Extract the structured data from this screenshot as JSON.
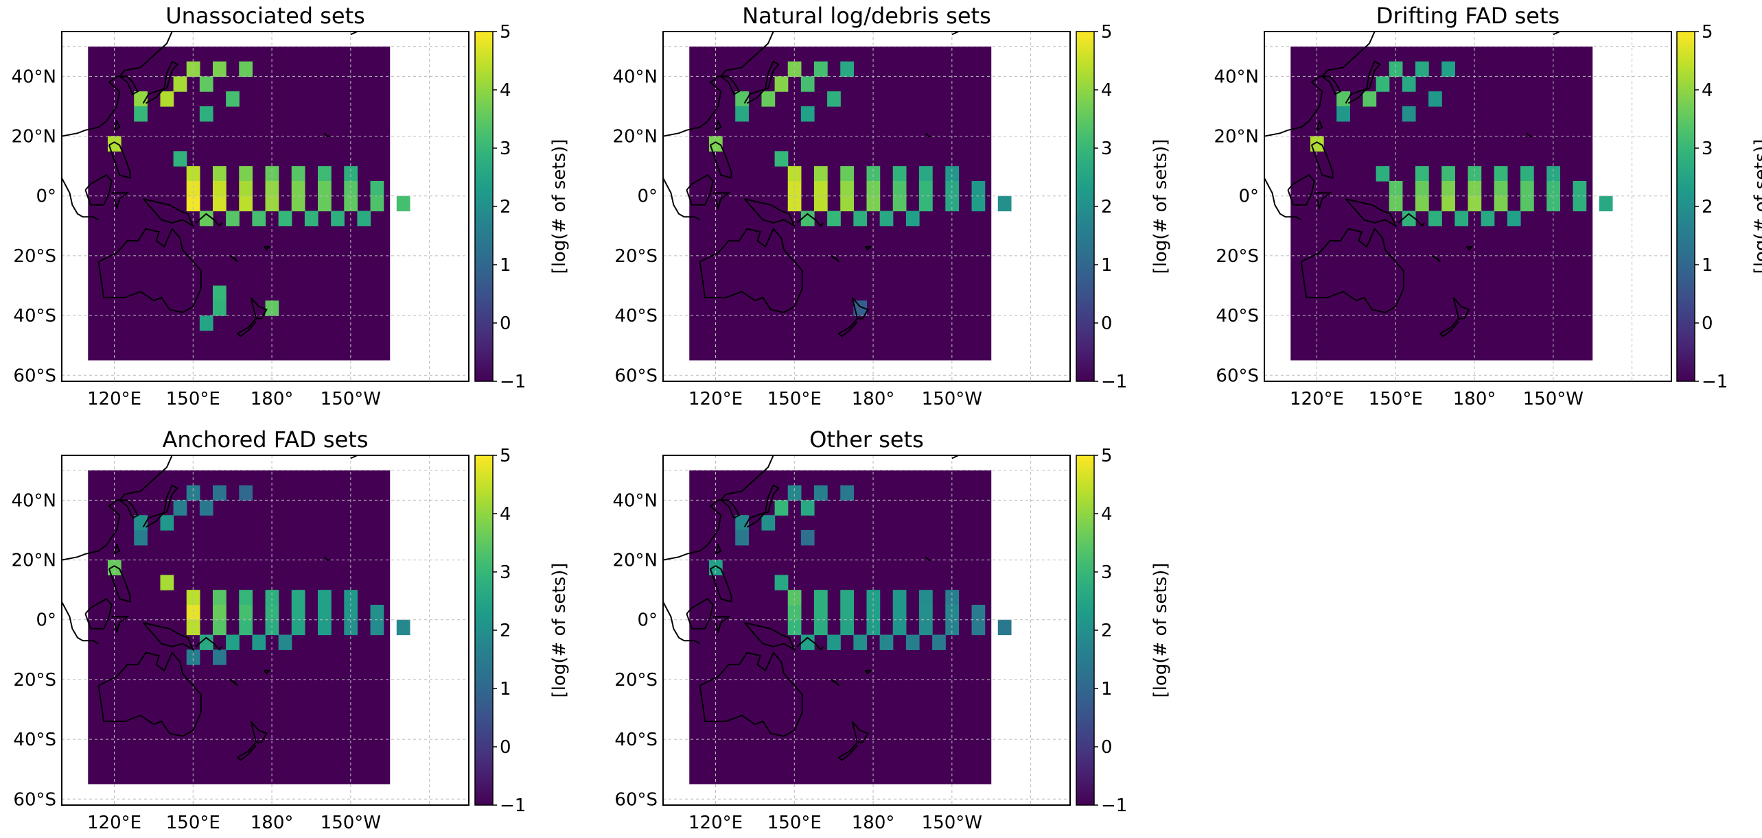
{
  "figure": {
    "tick_labels": {
      "x": [
        "120°E",
        "150°E",
        "180°",
        "150°W"
      ],
      "y": [
        "40°N",
        "20°N",
        "0°",
        "20°S",
        "40°S",
        "60°S"
      ]
    },
    "colorbar": {
      "label": "[log(# of sets)]",
      "ticks": [
        "5",
        "4",
        "3",
        "2",
        "1",
        "0",
        "−1"
      ],
      "range": [
        -1,
        5
      ],
      "colormap": "viridis"
    },
    "colors": {
      "background": "#440154",
      "coast": "#000000",
      "grid": "#bbbbbb"
    }
  },
  "chart_data": [
    {
      "type": "heatmap",
      "title": "Unassociated sets",
      "xlabel": "",
      "ylabel": "",
      "xlim": [
        110,
        225
      ],
      "ylim": [
        -55,
        50
      ],
      "cell_size_deg": 5,
      "cells": [
        [
          120,
          17.5,
          4.3
        ],
        [
          150,
          42.5,
          4.0
        ],
        [
          160,
          42.5,
          3.8
        ],
        [
          170,
          42.5,
          3.6
        ],
        [
          145,
          37.5,
          4.2
        ],
        [
          155,
          37.5,
          3.5
        ],
        [
          140,
          32.5,
          4.3
        ],
        [
          130,
          32.5,
          4.0
        ],
        [
          130,
          27.5,
          3.0
        ],
        [
          155,
          27.5,
          2.8
        ],
        [
          165,
          32.5,
          3.2
        ],
        [
          145,
          12.5,
          2.9
        ],
        [
          150,
          7.5,
          4.4
        ],
        [
          160,
          7.5,
          4.0
        ],
        [
          170,
          7.5,
          3.8
        ],
        [
          180,
          7.5,
          3.6
        ],
        [
          190,
          7.5,
          3.4
        ],
        [
          200,
          7.5,
          3.1
        ],
        [
          210,
          7.5,
          2.8
        ],
        [
          150,
          2.5,
          4.8
        ],
        [
          160,
          2.5,
          4.5
        ],
        [
          170,
          2.5,
          4.2
        ],
        [
          180,
          2.5,
          4.0
        ],
        [
          190,
          2.5,
          3.8
        ],
        [
          200,
          2.5,
          3.6
        ],
        [
          210,
          2.5,
          3.4
        ],
        [
          220,
          2.5,
          3.1
        ],
        [
          150,
          -2.5,
          4.9
        ],
        [
          160,
          -2.5,
          4.6
        ],
        [
          170,
          -2.5,
          4.4
        ],
        [
          180,
          -2.5,
          4.1
        ],
        [
          190,
          -2.5,
          3.8
        ],
        [
          200,
          -2.5,
          3.6
        ],
        [
          210,
          -2.5,
          3.5
        ],
        [
          220,
          -2.5,
          3.3
        ],
        [
          230,
          -2.5,
          3.2
        ],
        [
          155,
          -7.5,
          3.6
        ],
        [
          165,
          -7.5,
          3.4
        ],
        [
          175,
          -7.5,
          3.2
        ],
        [
          185,
          -7.5,
          3.0
        ],
        [
          195,
          -7.5,
          2.9
        ],
        [
          205,
          -7.5,
          2.8
        ],
        [
          215,
          -7.5,
          2.7
        ],
        [
          160,
          -32.5,
          3.0
        ],
        [
          160,
          -37.5,
          2.9
        ],
        [
          155,
          -42.5,
          2.5
        ],
        [
          180,
          -37.5,
          3.5
        ]
      ]
    },
    {
      "type": "heatmap",
      "title": "Natural log/debris sets",
      "xlabel": "",
      "ylabel": "",
      "xlim": [
        110,
        225
      ],
      "ylim": [
        -55,
        50
      ],
      "cell_size_deg": 5,
      "cells": [
        [
          120,
          17.5,
          3.8
        ],
        [
          150,
          42.5,
          3.8
        ],
        [
          160,
          42.5,
          3.2
        ],
        [
          170,
          42.5,
          2.6
        ],
        [
          145,
          37.5,
          3.9
        ],
        [
          155,
          37.5,
          3.2
        ],
        [
          140,
          32.5,
          3.6
        ],
        [
          130,
          32.5,
          3.4
        ],
        [
          130,
          27.5,
          2.6
        ],
        [
          155,
          27.5,
          2.4
        ],
        [
          165,
          32.5,
          2.8
        ],
        [
          145,
          12.5,
          3.0
        ],
        [
          150,
          7.5,
          4.4
        ],
        [
          160,
          7.5,
          4.0
        ],
        [
          170,
          7.5,
          3.6
        ],
        [
          180,
          7.5,
          3.2
        ],
        [
          190,
          7.5,
          2.9
        ],
        [
          200,
          7.5,
          2.6
        ],
        [
          210,
          7.5,
          2.2
        ],
        [
          150,
          2.5,
          4.6
        ],
        [
          160,
          2.5,
          4.4
        ],
        [
          170,
          2.5,
          4.0
        ],
        [
          180,
          2.5,
          3.7
        ],
        [
          190,
          2.5,
          3.3
        ],
        [
          200,
          2.5,
          3.0
        ],
        [
          210,
          2.5,
          2.6
        ],
        [
          220,
          2.5,
          2.2
        ],
        [
          150,
          -2.5,
          4.6
        ],
        [
          160,
          -2.5,
          4.4
        ],
        [
          170,
          -2.5,
          4.1
        ],
        [
          180,
          -2.5,
          3.8
        ],
        [
          190,
          -2.5,
          3.4
        ],
        [
          200,
          -2.5,
          3.0
        ],
        [
          210,
          -2.5,
          2.6
        ],
        [
          220,
          -2.5,
          2.3
        ],
        [
          230,
          -2.5,
          2.0
        ],
        [
          155,
          -7.5,
          3.2
        ],
        [
          165,
          -7.5,
          3.0
        ],
        [
          175,
          -7.5,
          2.8
        ],
        [
          185,
          -7.5,
          2.6
        ],
        [
          195,
          -7.5,
          2.4
        ],
        [
          175,
          -37.5,
          0.8
        ]
      ]
    },
    {
      "type": "heatmap",
      "title": "Drifting FAD sets",
      "xlabel": "",
      "ylabel": "",
      "xlim": [
        110,
        225
      ],
      "ylim": [
        -55,
        50
      ],
      "cell_size_deg": 5,
      "cells": [
        [
          120,
          17.5,
          4.3
        ],
        [
          150,
          42.5,
          3.0
        ],
        [
          160,
          42.5,
          2.6
        ],
        [
          170,
          42.5,
          2.4
        ],
        [
          145,
          37.5,
          3.0
        ],
        [
          155,
          37.5,
          2.6
        ],
        [
          140,
          32.5,
          3.4
        ],
        [
          130,
          32.5,
          3.4
        ],
        [
          130,
          27.5,
          2.2
        ],
        [
          155,
          27.5,
          2.0
        ],
        [
          165,
          32.5,
          2.2
        ],
        [
          145,
          7.5,
          2.8
        ],
        [
          160,
          7.5,
          3.0
        ],
        [
          170,
          7.5,
          3.1
        ],
        [
          180,
          7.5,
          3.1
        ],
        [
          190,
          7.5,
          3.0
        ],
        [
          200,
          7.5,
          2.8
        ],
        [
          210,
          7.5,
          2.6
        ],
        [
          150,
          2.5,
          3.4
        ],
        [
          160,
          2.5,
          3.6
        ],
        [
          170,
          2.5,
          3.8
        ],
        [
          180,
          2.5,
          3.8
        ],
        [
          190,
          2.5,
          3.6
        ],
        [
          200,
          2.5,
          3.4
        ],
        [
          210,
          2.5,
          3.1
        ],
        [
          220,
          2.5,
          2.8
        ],
        [
          150,
          -2.5,
          3.6
        ],
        [
          160,
          -2.5,
          3.8
        ],
        [
          170,
          -2.5,
          4.0
        ],
        [
          180,
          -2.5,
          4.0
        ],
        [
          190,
          -2.5,
          3.8
        ],
        [
          200,
          -2.5,
          3.4
        ],
        [
          210,
          -2.5,
          3.1
        ],
        [
          220,
          -2.5,
          2.8
        ],
        [
          230,
          -2.5,
          2.6
        ],
        [
          155,
          -7.5,
          2.9
        ],
        [
          165,
          -7.5,
          2.8
        ],
        [
          175,
          -7.5,
          2.7
        ],
        [
          185,
          -7.5,
          2.6
        ],
        [
          195,
          -7.5,
          2.4
        ]
      ]
    },
    {
      "type": "heatmap",
      "title": "Anchored FAD sets",
      "xlabel": "",
      "ylabel": "",
      "xlim": [
        110,
        225
      ],
      "ylim": [
        -55,
        50
      ],
      "cell_size_deg": 5,
      "cells": [
        [
          120,
          17.5,
          3.6
        ],
        [
          150,
          42.5,
          1.6
        ],
        [
          160,
          42.5,
          1.3
        ],
        [
          170,
          42.5,
          1.0
        ],
        [
          145,
          37.5,
          1.6
        ],
        [
          155,
          37.5,
          1.4
        ],
        [
          140,
          32.5,
          2.2
        ],
        [
          130,
          32.5,
          2.0
        ],
        [
          130,
          27.5,
          1.6
        ],
        [
          140,
          12.5,
          4.2
        ],
        [
          150,
          7.5,
          4.4
        ],
        [
          160,
          7.5,
          3.4
        ],
        [
          170,
          7.5,
          3.0
        ],
        [
          180,
          7.5,
          2.8
        ],
        [
          190,
          7.5,
          2.6
        ],
        [
          200,
          7.5,
          2.4
        ],
        [
          210,
          7.5,
          2.2
        ],
        [
          150,
          2.5,
          4.8
        ],
        [
          160,
          2.5,
          3.6
        ],
        [
          170,
          2.5,
          3.2
        ],
        [
          180,
          2.5,
          2.9
        ],
        [
          190,
          2.5,
          2.6
        ],
        [
          200,
          2.5,
          2.4
        ],
        [
          210,
          2.5,
          2.2
        ],
        [
          220,
          2.5,
          2.0
        ],
        [
          150,
          -2.5,
          4.4
        ],
        [
          160,
          -2.5,
          3.4
        ],
        [
          170,
          -2.5,
          3.0
        ],
        [
          180,
          -2.5,
          2.7
        ],
        [
          190,
          -2.5,
          2.5
        ],
        [
          200,
          -2.5,
          2.3
        ],
        [
          210,
          -2.5,
          2.0
        ],
        [
          220,
          -2.5,
          1.9
        ],
        [
          230,
          -2.5,
          1.8
        ],
        [
          155,
          -7.5,
          2.6
        ],
        [
          165,
          -7.5,
          2.4
        ],
        [
          175,
          -7.5,
          2.2
        ],
        [
          185,
          -7.5,
          1.8
        ],
        [
          150,
          -12.5,
          1.6
        ],
        [
          160,
          -12.5,
          1.4
        ]
      ]
    },
    {
      "type": "heatmap",
      "title": "Other sets",
      "xlabel": "",
      "ylabel": "",
      "xlim": [
        110,
        225
      ],
      "ylim": [
        -55,
        50
      ],
      "cell_size_deg": 5,
      "cells": [
        [
          120,
          17.5,
          2.4
        ],
        [
          150,
          42.5,
          1.8
        ],
        [
          160,
          42.5,
          1.6
        ],
        [
          170,
          42.5,
          1.4
        ],
        [
          145,
          37.5,
          3.0
        ],
        [
          155,
          37.5,
          2.6
        ],
        [
          140,
          32.5,
          2.0
        ],
        [
          130,
          32.5,
          1.8
        ],
        [
          130,
          27.5,
          1.4
        ],
        [
          155,
          27.5,
          1.2
        ],
        [
          145,
          12.5,
          2.6
        ],
        [
          150,
          7.5,
          3.4
        ],
        [
          160,
          7.5,
          2.8
        ],
        [
          170,
          7.5,
          2.6
        ],
        [
          180,
          7.5,
          2.4
        ],
        [
          190,
          7.5,
          2.2
        ],
        [
          200,
          7.5,
          1.9
        ],
        [
          210,
          7.5,
          1.6
        ],
        [
          150,
          2.5,
          3.2
        ],
        [
          160,
          2.5,
          2.8
        ],
        [
          170,
          2.5,
          2.6
        ],
        [
          180,
          2.5,
          2.4
        ],
        [
          190,
          2.5,
          2.2
        ],
        [
          200,
          2.5,
          2.0
        ],
        [
          210,
          2.5,
          1.8
        ],
        [
          220,
          2.5,
          1.5
        ],
        [
          150,
          -2.5,
          3.0
        ],
        [
          160,
          -2.5,
          2.7
        ],
        [
          170,
          -2.5,
          2.5
        ],
        [
          180,
          -2.5,
          2.3
        ],
        [
          190,
          -2.5,
          2.1
        ],
        [
          200,
          -2.5,
          1.9
        ],
        [
          210,
          -2.5,
          1.7
        ],
        [
          220,
          -2.5,
          1.5
        ],
        [
          230,
          -2.5,
          1.4
        ],
        [
          155,
          -7.5,
          2.4
        ],
        [
          165,
          -7.5,
          2.2
        ],
        [
          175,
          -7.5,
          2.0
        ],
        [
          185,
          -7.5,
          1.8
        ],
        [
          195,
          -7.5,
          1.6
        ],
        [
          205,
          -7.5,
          1.5
        ]
      ]
    }
  ]
}
